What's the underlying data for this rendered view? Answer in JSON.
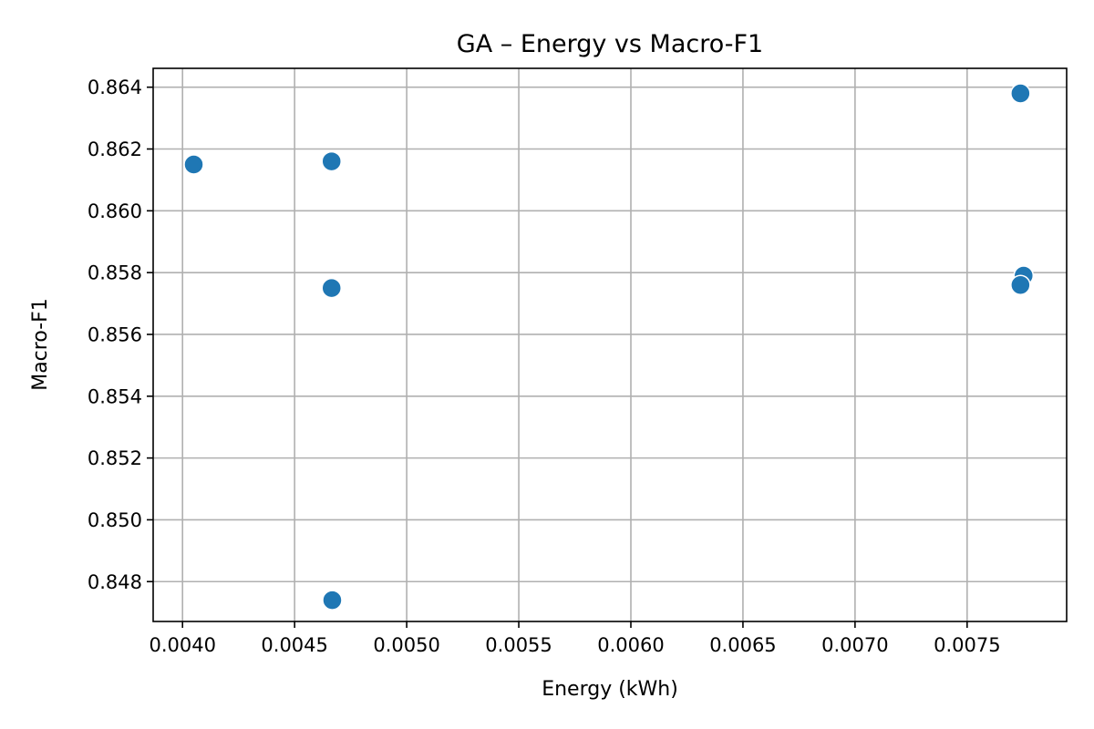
{
  "chart_data": {
    "type": "scatter",
    "title": "GA – Energy vs Macro-F1",
    "xlabel": "Energy (kWh)",
    "ylabel": "Macro-F1",
    "xlim": [
      0.003869,
      0.007944
    ],
    "ylim": [
      0.84671,
      0.86461
    ],
    "xticks": [
      "0.0040",
      "0.0045",
      "0.0050",
      "0.0055",
      "0.0060",
      "0.0065",
      "0.0070",
      "0.0075"
    ],
    "yticks": [
      "0.848",
      "0.850",
      "0.852",
      "0.854",
      "0.856",
      "0.858",
      "0.860",
      "0.862",
      "0.864"
    ],
    "grid": true,
    "marker_color": "#1f77b4",
    "points": [
      {
        "x": 0.00405,
        "y": 0.8615
      },
      {
        "x": 0.004665,
        "y": 0.8616
      },
      {
        "x": 0.004665,
        "y": 0.8575
      },
      {
        "x": 0.004668,
        "y": 0.8474
      },
      {
        "x": 0.007738,
        "y": 0.8638
      },
      {
        "x": 0.007752,
        "y": 0.8579
      },
      {
        "x": 0.007738,
        "y": 0.8576
      }
    ]
  }
}
